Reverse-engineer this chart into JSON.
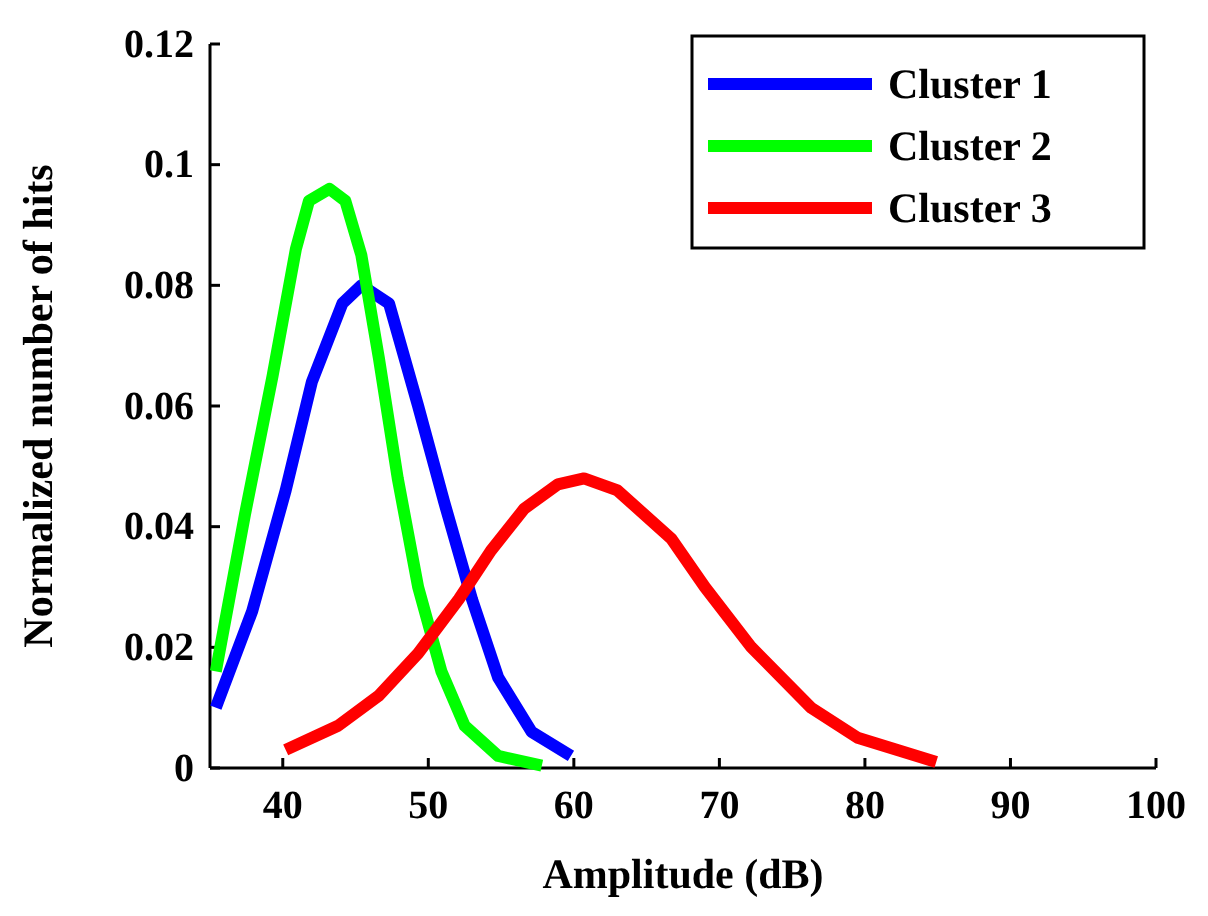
{
  "chart_data": {
    "type": "line",
    "xlabel": "Amplitude (dB)",
    "ylabel": "Normalized number of hits",
    "xlim": [
      35,
      100
    ],
    "xticks": [
      40,
      50,
      60,
      70,
      80,
      90,
      100
    ],
    "ylim": [
      0,
      0.12
    ],
    "yticks": [
      0,
      0.02,
      0.04,
      0.06,
      0.08,
      0.1,
      0.12
    ],
    "legend": "top right",
    "grid": false,
    "marker": "none",
    "line_style": "solid",
    "series": [
      {
        "name": "Cluster 1",
        "color": "#0000ff",
        "x": [
          35.4,
          37.9,
          40.2,
          42,
          44.1,
          45.4,
          47.3,
          49.3,
          51.1,
          53,
          54.8,
          57.1,
          59.8
        ],
        "values": [
          0.01,
          0.026,
          0.046,
          0.064,
          0.077,
          0.08,
          0.077,
          0.06,
          0.044,
          0.028,
          0.015,
          0.006,
          0.002
        ]
      },
      {
        "name": "Cluster 2",
        "color": "#00ff00",
        "x": [
          35.4,
          37.4,
          39.3,
          40.9,
          41.8,
          43.2,
          44.3,
          45.4,
          46.6,
          47.9,
          49.3,
          50.9,
          52.5,
          54.8,
          57.8
        ],
        "values": [
          0.016,
          0.042,
          0.065,
          0.086,
          0.094,
          0.096,
          0.094,
          0.085,
          0.068,
          0.048,
          0.03,
          0.016,
          0.007,
          0.002,
          0.0004
        ]
      },
      {
        "name": "Cluster 3",
        "color": "#ff0000",
        "x": [
          40.2,
          43.8,
          46.6,
          49.3,
          52.1,
          54.3,
          56.6,
          58.9,
          60.7,
          63,
          66.7,
          69,
          72.2,
          76.3,
          79.5,
          84.9
        ],
        "values": [
          0.003,
          0.007,
          0.012,
          0.019,
          0.028,
          0.036,
          0.043,
          0.047,
          0.048,
          0.046,
          0.038,
          0.03,
          0.02,
          0.01,
          0.005,
          0.001
        ]
      }
    ]
  }
}
